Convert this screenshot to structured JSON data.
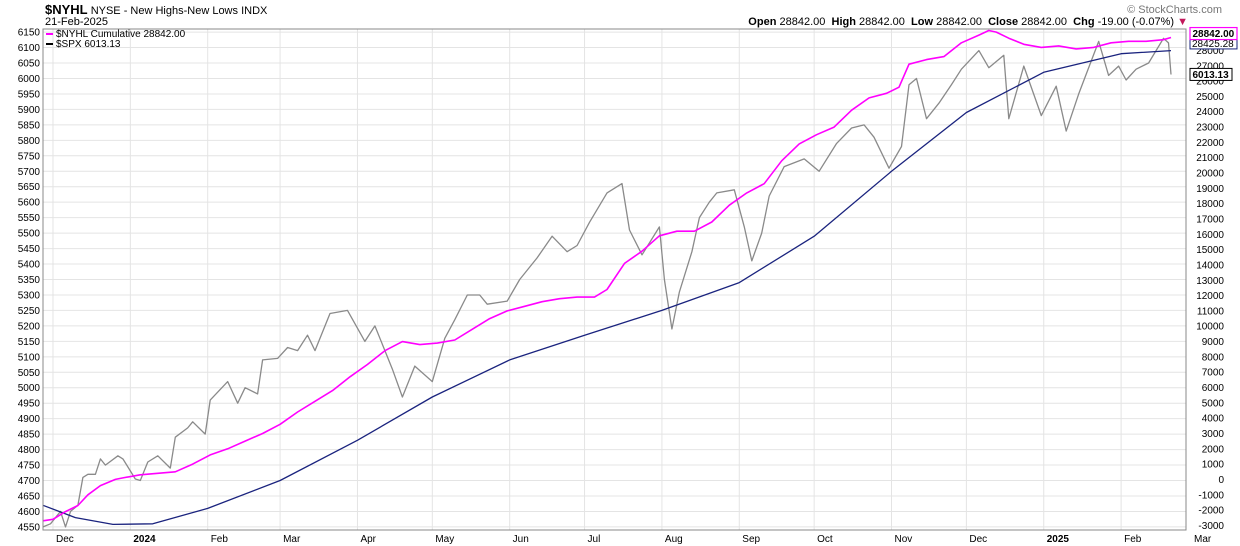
{
  "header": {
    "symbol": "$NYHL",
    "description": "NYSE - New Highs-New Lows",
    "type": "INDX",
    "date": "21-Feb-2025",
    "watermark": "© StockCharts.com",
    "open_label": "Open",
    "open_value": "28842.00",
    "high_label": "High",
    "high_value": "28842.00",
    "low_label": "Low",
    "low_value": "28842.00",
    "close_label": "Close",
    "close_value": "28842.00",
    "chg_label": "Chg",
    "chg_value": "-19.00 (-0.07%)",
    "chg_icon": "triangle-down-icon"
  },
  "colors": {
    "nyhl_cumulative": "#ff00ff",
    "spx": "#8a8a8a",
    "moving_average": "#1a237e",
    "grid": "#e4e4e4",
    "frame": "#888888"
  },
  "chart_data": {
    "type": "line",
    "title": "$NYHL NYSE - New Highs-New Lows INDX",
    "x_type": "date",
    "x_range": [
      "2023-11-27",
      "2025-02-21"
    ],
    "x_ticks": [
      {
        "date": "2023-12-01",
        "label": "Dec",
        "bold": false
      },
      {
        "date": "2024-01-01",
        "label": "2024",
        "bold": true
      },
      {
        "date": "2024-02-01",
        "label": "Feb",
        "bold": false
      },
      {
        "date": "2024-03-01",
        "label": "Mar",
        "bold": false
      },
      {
        "date": "2024-04-01",
        "label": "Apr",
        "bold": false
      },
      {
        "date": "2024-05-01",
        "label": "May",
        "bold": false
      },
      {
        "date": "2024-06-01",
        "label": "Jun",
        "bold": false
      },
      {
        "date": "2024-07-01",
        "label": "Jul",
        "bold": false
      },
      {
        "date": "2024-08-01",
        "label": "Aug",
        "bold": false
      },
      {
        "date": "2024-09-01",
        "label": "Sep",
        "bold": false
      },
      {
        "date": "2024-10-01",
        "label": "Oct",
        "bold": false
      },
      {
        "date": "2024-11-01",
        "label": "Nov",
        "bold": false
      },
      {
        "date": "2024-12-01",
        "label": "Dec",
        "bold": false
      },
      {
        "date": "2025-01-01",
        "label": "2025",
        "bold": true
      },
      {
        "date": "2025-02-01",
        "label": "Feb",
        "bold": false
      },
      {
        "date": "2025-03-01",
        "label": "Mar",
        "bold": false
      }
    ],
    "left_axis": {
      "series": "$SPX",
      "range": [
        4540,
        6160
      ],
      "ticks": [
        4550,
        4600,
        4650,
        4700,
        4750,
        4800,
        4850,
        4900,
        4950,
        5000,
        5050,
        5100,
        5150,
        5200,
        5250,
        5300,
        5350,
        5400,
        5450,
        5500,
        5550,
        5600,
        5650,
        5700,
        5750,
        5800,
        5850,
        5900,
        5950,
        6000,
        6050,
        6100,
        6150
      ]
    },
    "right_axis": {
      "series": "$NYHL Cumulative",
      "range": [
        -3300,
        29400
      ],
      "ticks": [
        -3000,
        -2000,
        -1000,
        0,
        1000,
        2000,
        3000,
        4000,
        5000,
        6000,
        7000,
        8000,
        9000,
        10000,
        11000,
        12000,
        13000,
        14000,
        15000,
        16000,
        17000,
        18000,
        19000,
        20000,
        21000,
        22000,
        23000,
        24000,
        25000,
        26000,
        27000,
        28000
      ],
      "last_value_badges": [
        {
          "series": "$NYHL Cumulative",
          "text": "28842.00"
        },
        {
          "series": "$SPX",
          "text": "6013.13"
        }
      ],
      "hidden_badge_text": "28425.28"
    },
    "legend": {
      "position": "top-left",
      "entries": [
        {
          "name": "$NYHL Cumulative",
          "value": "28842.00",
          "color": "#ff00ff"
        },
        {
          "name": "$SPX",
          "value": "6013.13",
          "color": "#000000"
        }
      ]
    },
    "series": [
      {
        "name": "$NYHL Cumulative",
        "axis": "right",
        "color": "#ff00ff",
        "points": [
          [
            "2023-11-27",
            -2700
          ],
          [
            "2023-12-01",
            -2600
          ],
          [
            "2023-12-06",
            -2100
          ],
          [
            "2023-12-11",
            -1700
          ],
          [
            "2023-12-15",
            -1000
          ],
          [
            "2023-12-20",
            -400
          ],
          [
            "2023-12-26",
            0
          ],
          [
            "2023-12-29",
            100
          ],
          [
            "2024-01-05",
            300
          ],
          [
            "2024-01-12",
            400
          ],
          [
            "2024-01-19",
            500
          ],
          [
            "2024-01-26",
            1000
          ],
          [
            "2024-02-02",
            1600
          ],
          [
            "2024-02-09",
            2000
          ],
          [
            "2024-02-16",
            2500
          ],
          [
            "2024-02-23",
            3000
          ],
          [
            "2024-03-01",
            3600
          ],
          [
            "2024-03-08",
            4400
          ],
          [
            "2024-03-15",
            5100
          ],
          [
            "2024-03-22",
            5800
          ],
          [
            "2024-03-29",
            6700
          ],
          [
            "2024-04-05",
            7500
          ],
          [
            "2024-04-12",
            8400
          ],
          [
            "2024-04-19",
            9000
          ],
          [
            "2024-04-26",
            8800
          ],
          [
            "2024-05-03",
            8900
          ],
          [
            "2024-05-10",
            9100
          ],
          [
            "2024-05-17",
            9800
          ],
          [
            "2024-05-24",
            10500
          ],
          [
            "2024-05-31",
            11000
          ],
          [
            "2024-06-07",
            11300
          ],
          [
            "2024-06-14",
            11600
          ],
          [
            "2024-06-21",
            11800
          ],
          [
            "2024-06-28",
            11900
          ],
          [
            "2024-07-05",
            11900
          ],
          [
            "2024-07-10",
            12400
          ],
          [
            "2024-07-17",
            14100
          ],
          [
            "2024-07-24",
            14900
          ],
          [
            "2024-07-31",
            15900
          ],
          [
            "2024-08-07",
            16200
          ],
          [
            "2024-08-14",
            16200
          ],
          [
            "2024-08-21",
            16800
          ],
          [
            "2024-08-28",
            17900
          ],
          [
            "2024-09-04",
            18700
          ],
          [
            "2024-09-11",
            19300
          ],
          [
            "2024-09-18",
            20800
          ],
          [
            "2024-09-25",
            21900
          ],
          [
            "2024-10-02",
            22500
          ],
          [
            "2024-10-09",
            23000
          ],
          [
            "2024-10-16",
            24100
          ],
          [
            "2024-10-23",
            24900
          ],
          [
            "2024-10-30",
            25200
          ],
          [
            "2024-11-04",
            25600
          ],
          [
            "2024-11-08",
            27100
          ],
          [
            "2024-11-15",
            27400
          ],
          [
            "2024-11-22",
            27600
          ],
          [
            "2024-11-29",
            28500
          ],
          [
            "2024-12-06",
            29000
          ],
          [
            "2024-12-10",
            29300
          ],
          [
            "2024-12-13",
            29200
          ],
          [
            "2024-12-18",
            28800
          ],
          [
            "2024-12-24",
            28400
          ],
          [
            "2024-12-31",
            28200
          ],
          [
            "2025-01-07",
            28300
          ],
          [
            "2025-01-14",
            28100
          ],
          [
            "2025-01-21",
            28200
          ],
          [
            "2025-01-28",
            28500
          ],
          [
            "2025-02-04",
            28600
          ],
          [
            "2025-02-11",
            28600
          ],
          [
            "2025-02-18",
            28700
          ],
          [
            "2025-02-21",
            28842
          ]
        ]
      },
      {
        "name": "$SPX",
        "axis": "left",
        "color": "#8a8a8a",
        "points": [
          [
            "2023-11-27",
            4550
          ],
          [
            "2023-11-30",
            4560
          ],
          [
            "2023-12-04",
            4600
          ],
          [
            "2023-12-06",
            4550
          ],
          [
            "2023-12-08",
            4600
          ],
          [
            "2023-12-11",
            4620
          ],
          [
            "2023-12-13",
            4710
          ],
          [
            "2023-12-15",
            4720
          ],
          [
            "2023-12-18",
            4720
          ],
          [
            "2023-12-20",
            4770
          ],
          [
            "2023-12-22",
            4750
          ],
          [
            "2023-12-27",
            4780
          ],
          [
            "2023-12-29",
            4770
          ],
          [
            "2024-01-03",
            4705
          ],
          [
            "2024-01-05",
            4700
          ],
          [
            "2024-01-08",
            4760
          ],
          [
            "2024-01-12",
            4780
          ],
          [
            "2024-01-17",
            4740
          ],
          [
            "2024-01-19",
            4840
          ],
          [
            "2024-01-24",
            4870
          ],
          [
            "2024-01-26",
            4890
          ],
          [
            "2024-01-31",
            4850
          ],
          [
            "2024-02-02",
            4960
          ],
          [
            "2024-02-09",
            5020
          ],
          [
            "2024-02-13",
            4950
          ],
          [
            "2024-02-16",
            5000
          ],
          [
            "2024-02-21",
            4980
          ],
          [
            "2024-02-23",
            5090
          ],
          [
            "2024-02-29",
            5095
          ],
          [
            "2024-03-04",
            5130
          ],
          [
            "2024-03-08",
            5120
          ],
          [
            "2024-03-12",
            5170
          ],
          [
            "2024-03-15",
            5120
          ],
          [
            "2024-03-21",
            5240
          ],
          [
            "2024-03-28",
            5250
          ],
          [
            "2024-04-04",
            5150
          ],
          [
            "2024-04-08",
            5200
          ],
          [
            "2024-04-12",
            5120
          ],
          [
            "2024-04-15",
            5060
          ],
          [
            "2024-04-19",
            4970
          ],
          [
            "2024-04-24",
            5070
          ],
          [
            "2024-05-01",
            5020
          ],
          [
            "2024-05-06",
            5160
          ],
          [
            "2024-05-10",
            5220
          ],
          [
            "2024-05-15",
            5300
          ],
          [
            "2024-05-20",
            5300
          ],
          [
            "2024-05-23",
            5270
          ],
          [
            "2024-05-31",
            5280
          ],
          [
            "2024-06-05",
            5350
          ],
          [
            "2024-06-12",
            5420
          ],
          [
            "2024-06-18",
            5490
          ],
          [
            "2024-06-24",
            5440
          ],
          [
            "2024-06-28",
            5460
          ],
          [
            "2024-07-03",
            5535
          ],
          [
            "2024-07-10",
            5630
          ],
          [
            "2024-07-16",
            5660
          ],
          [
            "2024-07-19",
            5510
          ],
          [
            "2024-07-24",
            5430
          ],
          [
            "2024-07-31",
            5520
          ],
          [
            "2024-08-02",
            5350
          ],
          [
            "2024-08-05",
            5190
          ],
          [
            "2024-08-08",
            5310
          ],
          [
            "2024-08-13",
            5440
          ],
          [
            "2024-08-16",
            5550
          ],
          [
            "2024-08-20",
            5600
          ],
          [
            "2024-08-23",
            5630
          ],
          [
            "2024-08-30",
            5640
          ],
          [
            "2024-09-03",
            5520
          ],
          [
            "2024-09-06",
            5410
          ],
          [
            "2024-09-10",
            5500
          ],
          [
            "2024-09-13",
            5620
          ],
          [
            "2024-09-19",
            5715
          ],
          [
            "2024-09-27",
            5740
          ],
          [
            "2024-10-03",
            5700
          ],
          [
            "2024-10-10",
            5790
          ],
          [
            "2024-10-16",
            5840
          ],
          [
            "2024-10-21",
            5850
          ],
          [
            "2024-10-25",
            5810
          ],
          [
            "2024-10-31",
            5710
          ],
          [
            "2024-11-05",
            5780
          ],
          [
            "2024-11-08",
            5980
          ],
          [
            "2024-11-11",
            6000
          ],
          [
            "2024-11-15",
            5870
          ],
          [
            "2024-11-20",
            5920
          ],
          [
            "2024-11-25",
            5980
          ],
          [
            "2024-11-29",
            6030
          ],
          [
            "2024-12-06",
            6090
          ],
          [
            "2024-12-10",
            6035
          ],
          [
            "2024-12-16",
            6075
          ],
          [
            "2024-12-18",
            5870
          ],
          [
            "2024-12-24",
            6040
          ],
          [
            "2024-12-31",
            5880
          ],
          [
            "2025-01-06",
            5975
          ],
          [
            "2025-01-10",
            5830
          ],
          [
            "2025-01-15",
            5950
          ],
          [
            "2025-01-23",
            6120
          ],
          [
            "2025-01-27",
            6010
          ],
          [
            "2025-01-31",
            6040
          ],
          [
            "2025-02-03",
            5995
          ],
          [
            "2025-02-07",
            6030
          ],
          [
            "2025-02-12",
            6050
          ],
          [
            "2025-02-18",
            6130
          ],
          [
            "2025-02-20",
            6115
          ],
          [
            "2025-02-21",
            6013
          ]
        ]
      },
      {
        "name": "",
        "axis": "left",
        "color": "#1a237e",
        "points": [
          [
            "2023-11-27",
            4620
          ],
          [
            "2023-12-10",
            4580
          ],
          [
            "2023-12-25",
            4558
          ],
          [
            "2024-01-10",
            4560
          ],
          [
            "2024-02-01",
            4610
          ],
          [
            "2024-03-01",
            4700
          ],
          [
            "2024-04-01",
            4830
          ],
          [
            "2024-05-01",
            4970
          ],
          [
            "2024-06-01",
            5090
          ],
          [
            "2024-07-01",
            5170
          ],
          [
            "2024-08-01",
            5250
          ],
          [
            "2024-09-01",
            5340
          ],
          [
            "2024-10-01",
            5490
          ],
          [
            "2024-11-01",
            5700
          ],
          [
            "2024-12-01",
            5890
          ],
          [
            "2025-01-01",
            6020
          ],
          [
            "2025-02-01",
            6080
          ],
          [
            "2025-02-21",
            6090
          ]
        ]
      }
    ]
  }
}
